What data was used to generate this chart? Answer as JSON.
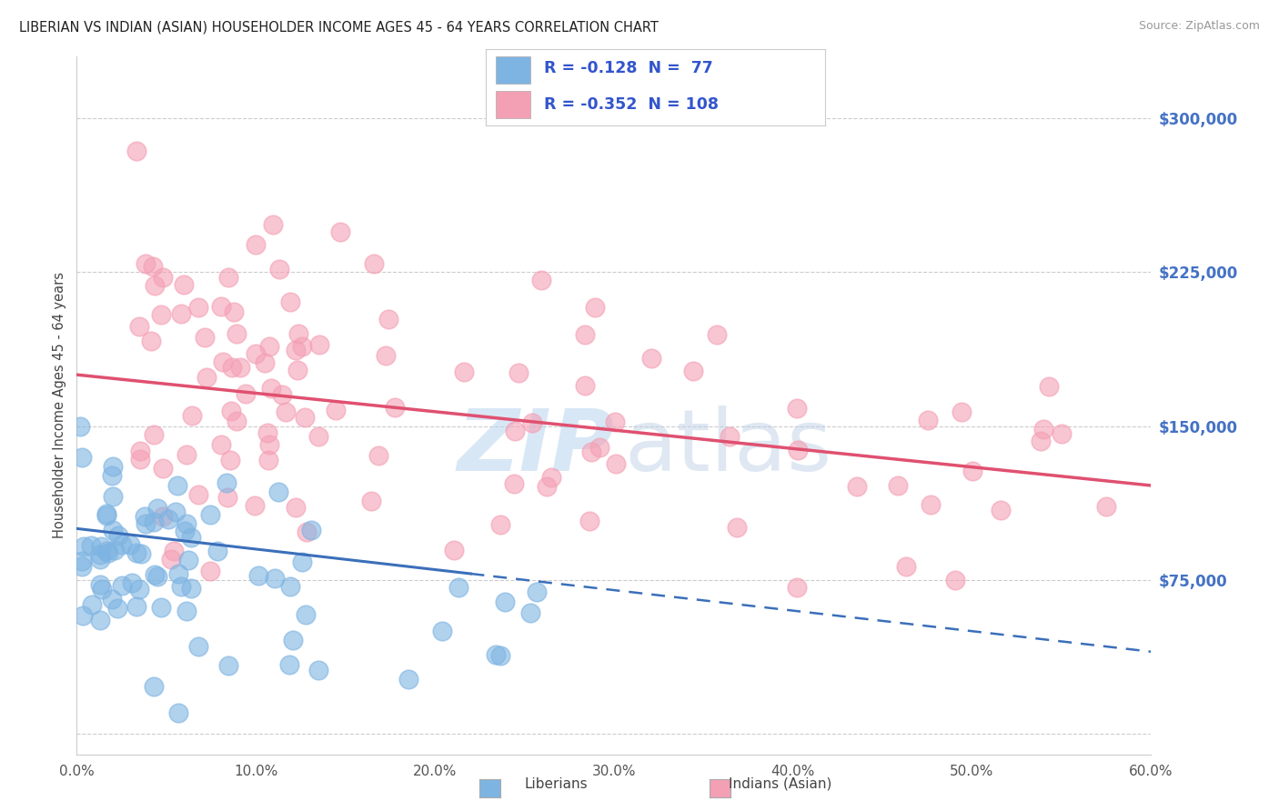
{
  "title": "LIBERIAN VS INDIAN (ASIAN) HOUSEHOLDER INCOME AGES 45 - 64 YEARS CORRELATION CHART",
  "source": "Source: ZipAtlas.com",
  "ylabel": "Householder Income Ages 45 - 64 years",
  "xlim": [
    0.0,
    0.6
  ],
  "ylim": [
    -10000,
    330000
  ],
  "yticks": [
    0,
    75000,
    150000,
    225000,
    300000
  ],
  "ytick_labels": [
    "",
    "$75,000",
    "$150,000",
    "$225,000",
    "$300,000"
  ],
  "xticks": [
    0.0,
    0.1,
    0.2,
    0.3,
    0.4,
    0.5,
    0.6
  ],
  "xtick_labels": [
    "0.0%",
    "10.0%",
    "20.0%",
    "30.0%",
    "40.0%",
    "50.0%",
    "60.0%"
  ],
  "liberian_color": "#7eb4e2",
  "indian_color": "#f4a0b4",
  "liberian_line_color": "#3b6fba",
  "indian_line_color": "#e05070",
  "background_color": "#ffffff",
  "legend_text1": "R = -0.128  N =  77",
  "legend_text2": "R = -0.352  N = 108",
  "watermark_line1": "ZIP",
  "watermark_line2": "atlas"
}
